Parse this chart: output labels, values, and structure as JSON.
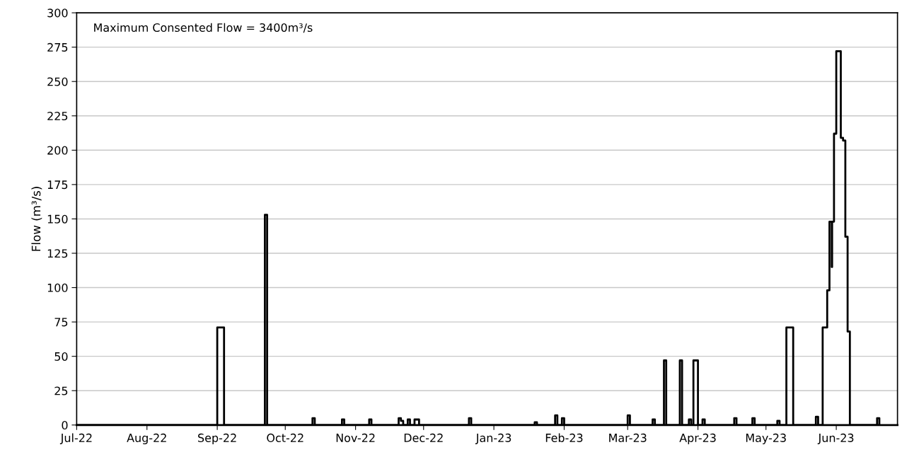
{
  "chart_data": {
    "type": "step",
    "ylabel": "Flow (m³/s)",
    "annotations": [
      "Maximum Consented Flow = 3400m³/s"
    ],
    "series": [
      {
        "color": "#000000",
        "x": [
          "2022-07-01",
          "2022-09-01",
          "2022-09-04",
          "2022-09-22",
          "2022-09-23",
          "2022-10-13",
          "2022-10-14",
          "2022-10-26",
          "2022-10-27",
          "2022-11-07",
          "2022-11-08",
          "2022-11-20",
          "2022-11-21",
          "2022-11-22",
          "2022-11-24",
          "2022-11-25",
          "2022-11-27",
          "2022-11-29",
          "2022-12-21",
          "2022-12-22",
          "2023-01-19",
          "2023-01-20",
          "2023-01-28",
          "2023-01-29",
          "2023-01-31",
          "2023-02-01",
          "2023-03-01",
          "2023-03-02",
          "2023-03-12",
          "2023-03-13",
          "2023-03-17",
          "2023-03-18",
          "2023-03-24",
          "2023-03-25",
          "2023-03-28",
          "2023-03-29",
          "2023-03-30",
          "2023-04-01",
          "2023-04-03",
          "2023-04-04",
          "2023-04-17",
          "2023-04-18",
          "2023-04-25",
          "2023-04-26",
          "2023-05-06",
          "2023-05-07",
          "2023-05-10",
          "2023-05-13",
          "2023-05-23",
          "2023-05-24",
          "2023-05-26",
          "2023-05-28",
          "2023-05-29",
          "2023-05-30T00:00",
          "2023-05-30T04:00",
          "2023-05-31",
          "2023-06-01",
          "2023-06-03",
          "2023-06-04",
          "2023-06-05",
          "2023-06-06",
          "2023-06-07",
          "2023-06-19",
          "2023-06-20"
        ],
        "values": [
          0,
          71,
          0,
          153,
          0,
          5,
          0,
          4,
          0,
          4,
          0,
          5,
          3,
          0,
          4,
          0,
          4,
          0,
          5,
          0,
          2,
          0,
          7,
          0,
          5,
          0,
          7,
          0,
          4,
          0,
          47,
          0,
          47,
          0,
          4,
          0,
          47,
          0,
          4,
          0,
          5,
          0,
          5,
          0,
          3,
          0,
          71,
          0,
          6,
          0,
          71,
          98,
          148,
          115,
          148,
          212,
          272,
          209,
          207,
          137,
          68,
          0,
          5,
          0
        ]
      }
    ],
    "xlim": [
      "2022-07-01",
      "2023-06-28"
    ],
    "xticks": [
      {
        "value": "2022-07-01",
        "label": "Jul-22"
      },
      {
        "value": "2022-08-01",
        "label": "Aug-22"
      },
      {
        "value": "2022-09-01",
        "label": "Sep-22"
      },
      {
        "value": "2022-10-01",
        "label": "Oct-22"
      },
      {
        "value": "2022-11-01",
        "label": "Nov-22"
      },
      {
        "value": "2022-12-01",
        "label": "Dec-22"
      },
      {
        "value": "2023-01-01",
        "label": "Jan-23"
      },
      {
        "value": "2023-02-01",
        "label": "Feb-23"
      },
      {
        "value": "2023-03-01",
        "label": "Mar-23"
      },
      {
        "value": "2023-04-01",
        "label": "Apr-23"
      },
      {
        "value": "2023-05-01",
        "label": "May-23"
      },
      {
        "value": "2023-06-01",
        "label": "Jun-23"
      }
    ],
    "ylim": [
      0,
      300
    ],
    "yticks": [
      0,
      25,
      50,
      75,
      100,
      125,
      150,
      175,
      200,
      225,
      250,
      275,
      300
    ],
    "grid": "y",
    "line_style": "solid"
  }
}
